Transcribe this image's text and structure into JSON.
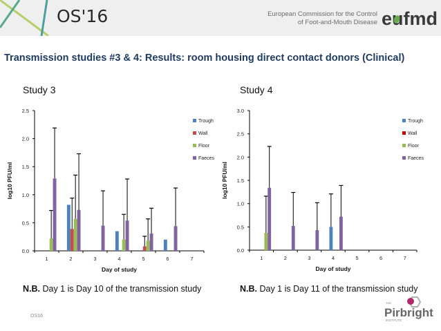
{
  "header": {
    "event_logo": "OS'16",
    "org_line1": "European Commission for the Control",
    "org_line2": "of Foot-and-Mouth Disease",
    "org_logo": "eufmd"
  },
  "slide_title": "Transmission studies #3 & 4: Results: room housing direct contact donors (Clinical)",
  "study3": {
    "label": "Study 3",
    "note_bold": "N.B.",
    "note_text": " Day 1 is Day 10 of the transmission study"
  },
  "study4": {
    "label": "Study 4",
    "note_bold": "N.B.",
    "note_text": " Day 1 is Day 11 of the transmission study"
  },
  "footer": {
    "tag": "OS16",
    "pirbright_small": "THE",
    "pirbright_name": "Pirbright",
    "pirbright_sub": "INSTITUTE"
  },
  "colors": {
    "Trough": "#4f81bd",
    "Wall": "#c0504d",
    "Floor": "#9bbb59",
    "Faeces": "#8064a2",
    "Wall_study4": "#c00000",
    "title": "#1f3a5f"
  },
  "chart_data": [
    {
      "type": "bar",
      "title": "Study 3",
      "xlabel": "Day of study",
      "ylabel": "log10 PFU/ml",
      "ylim": [
        0,
        2.5
      ],
      "yticks": [
        "0.0",
        "0.5",
        "1.0",
        "1.5",
        "2.0",
        "2.5"
      ],
      "categories": [
        "1",
        "2",
        "3",
        "4",
        "5",
        "6",
        "7"
      ],
      "legend": [
        "Trough",
        "Wall",
        "Floor",
        "Faeces"
      ],
      "legend_position": "top-right",
      "grid": false,
      "series": [
        {
          "name": "Trough",
          "values": [
            0,
            0.82,
            0,
            0.35,
            0,
            0.2,
            0
          ],
          "error_upper": [
            null,
            null,
            null,
            null,
            null,
            null,
            null
          ]
        },
        {
          "name": "Wall",
          "values": [
            0,
            0.39,
            0,
            0,
            0.08,
            0,
            0
          ],
          "error_upper": [
            null,
            0.94,
            null,
            null,
            0.26,
            null,
            null
          ]
        },
        {
          "name": "Floor",
          "values": [
            0.22,
            0.57,
            0,
            0.2,
            0.18,
            0,
            0
          ],
          "error_upper": [
            0.72,
            1.35,
            null,
            0.65,
            0.57,
            null,
            null
          ]
        },
        {
          "name": "Faeces",
          "values": [
            1.29,
            0.73,
            0.45,
            0.54,
            0.31,
            0.44,
            0
          ],
          "error_upper": [
            2.19,
            1.73,
            1.07,
            1.28,
            0.76,
            1.12,
            null
          ]
        }
      ]
    },
    {
      "type": "bar",
      "title": "Study 4",
      "xlabel": "Day of study",
      "ylabel": "log10 PFU/ml",
      "ylim": [
        0,
        3.0
      ],
      "yticks": [
        "0.0",
        "0.5",
        "1.0",
        "1.5",
        "2.0",
        "2.5",
        "3.0"
      ],
      "categories": [
        "1",
        "2",
        "3",
        "4",
        "5",
        "6",
        "7"
      ],
      "legend": [
        "Trough",
        "Wall",
        "Floor",
        "Faeces"
      ],
      "legend_position": "top-right",
      "grid": false,
      "series": [
        {
          "name": "Trough",
          "values": [
            0,
            0,
            0,
            0.5,
            0,
            0,
            0
          ],
          "error_upper": [
            null,
            null,
            null,
            1.21,
            null,
            null,
            null
          ]
        },
        {
          "name": "Wall",
          "values": [
            0,
            0,
            0,
            0,
            0,
            0,
            0
          ],
          "error_upper": [
            null,
            null,
            null,
            null,
            null,
            null,
            null
          ]
        },
        {
          "name": "Floor",
          "values": [
            0.37,
            0,
            0,
            0,
            0,
            0,
            0
          ],
          "error_upper": [
            1.16,
            null,
            null,
            null,
            null,
            null,
            null
          ]
        },
        {
          "name": "Faeces",
          "values": [
            1.34,
            0.52,
            0.43,
            0.72,
            0,
            0,
            0
          ],
          "error_upper": [
            2.23,
            1.24,
            1.02,
            1.39,
            null,
            null,
            null
          ]
        }
      ]
    }
  ]
}
